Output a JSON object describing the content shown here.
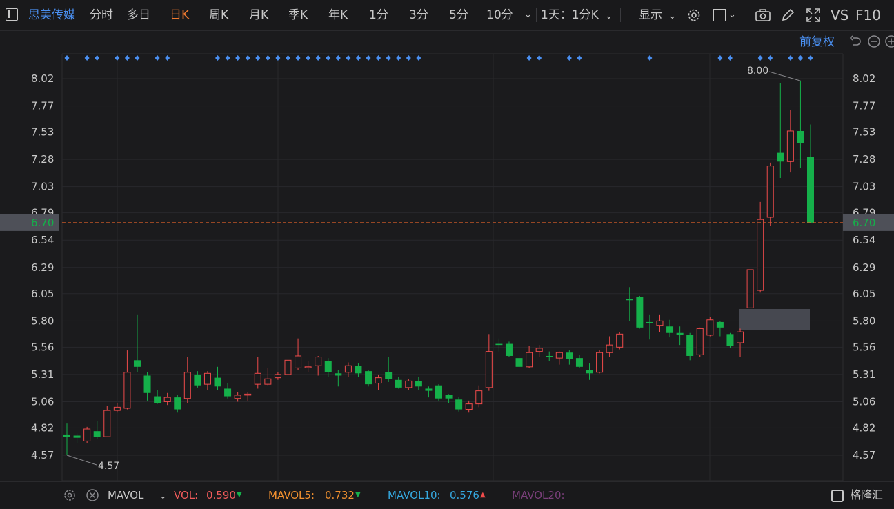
{
  "toolbar": {
    "stock_name": "思美传媒",
    "periods": [
      "分时",
      "多日",
      "日K",
      "周K",
      "月K",
      "季K",
      "年K",
      "1分",
      "3分",
      "5分",
      "10分"
    ],
    "range_select": "1天：1分K",
    "display": "显示",
    "vs": "VS",
    "f10": "F10"
  },
  "adjust_label": "前复权",
  "accent_up": "#ef4b4b",
  "accent_down": "#15b04a",
  "chart_data": {
    "type": "candlestick",
    "y_ticks": [
      "8.02",
      "7.77",
      "7.53",
      "7.28",
      "7.03",
      "6.79",
      "6.54",
      "6.29",
      "6.05",
      "5.80",
      "5.56",
      "5.31",
      "5.06",
      "4.82",
      "4.57"
    ],
    "ylim": [
      4.44,
      8.23
    ],
    "current_price": "6.70",
    "high_label": "8.00",
    "low_label": "4.57",
    "candles": [
      {
        "o": 4.76,
        "c": 4.74,
        "h": 4.86,
        "l": 4.57
      },
      {
        "o": 4.75,
        "c": 4.73,
        "h": 4.77,
        "l": 4.68
      },
      {
        "o": 4.7,
        "c": 4.81,
        "h": 4.83,
        "l": 4.68
      },
      {
        "o": 4.79,
        "c": 4.74,
        "h": 4.88,
        "l": 4.72
      },
      {
        "o": 4.74,
        "c": 4.98,
        "h": 5.02,
        "l": 4.74
      },
      {
        "o": 4.98,
        "c": 5.01,
        "h": 5.05,
        "l": 4.96
      },
      {
        "o": 5.0,
        "c": 5.33,
        "h": 5.53,
        "l": 4.99
      },
      {
        "o": 5.44,
        "c": 5.38,
        "h": 5.86,
        "l": 5.33
      },
      {
        "o": 5.3,
        "c": 5.14,
        "h": 5.33,
        "l": 5.07
      },
      {
        "o": 5.11,
        "c": 5.05,
        "h": 5.17,
        "l": 5.04
      },
      {
        "o": 5.06,
        "c": 5.1,
        "h": 5.14,
        "l": 5.03
      },
      {
        "o": 5.1,
        "c": 4.99,
        "h": 5.12,
        "l": 4.96
      },
      {
        "o": 5.09,
        "c": 5.33,
        "h": 5.47,
        "l": 5.05
      },
      {
        "o": 5.31,
        "c": 5.21,
        "h": 5.34,
        "l": 5.19
      },
      {
        "o": 5.22,
        "c": 5.32,
        "h": 5.34,
        "l": 5.17
      },
      {
        "o": 5.28,
        "c": 5.2,
        "h": 5.38,
        "l": 5.17
      },
      {
        "o": 5.18,
        "c": 5.11,
        "h": 5.23,
        "l": 5.09
      },
      {
        "o": 5.09,
        "c": 5.12,
        "h": 5.15,
        "l": 5.06
      },
      {
        "o": 5.13,
        "c": 5.13,
        "h": 5.15,
        "l": 5.07
      },
      {
        "o": 5.22,
        "c": 5.32,
        "h": 5.47,
        "l": 5.18
      },
      {
        "o": 5.22,
        "c": 5.27,
        "h": 5.37,
        "l": 5.21
      },
      {
        "o": 5.28,
        "c": 5.31,
        "h": 5.33,
        "l": 5.26
      },
      {
        "o": 5.31,
        "c": 5.44,
        "h": 5.48,
        "l": 5.3
      },
      {
        "o": 5.37,
        "c": 5.48,
        "h": 5.64,
        "l": 5.35
      },
      {
        "o": 5.38,
        "c": 5.38,
        "h": 5.43,
        "l": 5.33
      },
      {
        "o": 5.39,
        "c": 5.47,
        "h": 5.48,
        "l": 5.3
      },
      {
        "o": 5.43,
        "c": 5.33,
        "h": 5.46,
        "l": 5.29
      },
      {
        "o": 5.32,
        "c": 5.3,
        "h": 5.35,
        "l": 5.2
      },
      {
        "o": 5.33,
        "c": 5.39,
        "h": 5.42,
        "l": 5.29
      },
      {
        "o": 5.39,
        "c": 5.32,
        "h": 5.41,
        "l": 5.29
      },
      {
        "o": 5.34,
        "c": 5.22,
        "h": 5.35,
        "l": 5.2
      },
      {
        "o": 5.23,
        "c": 5.28,
        "h": 5.31,
        "l": 5.17
      },
      {
        "o": 5.33,
        "c": 5.27,
        "h": 5.47,
        "l": 5.24
      },
      {
        "o": 5.26,
        "c": 5.19,
        "h": 5.29,
        "l": 5.18
      },
      {
        "o": 5.19,
        "c": 5.25,
        "h": 5.27,
        "l": 5.17
      },
      {
        "o": 5.25,
        "c": 5.2,
        "h": 5.29,
        "l": 5.17
      },
      {
        "o": 5.18,
        "c": 5.16,
        "h": 5.2,
        "l": 5.1
      },
      {
        "o": 5.21,
        "c": 5.09,
        "h": 5.22,
        "l": 5.07
      },
      {
        "o": 5.12,
        "c": 5.09,
        "h": 5.13,
        "l": 5.05
      },
      {
        "o": 5.08,
        "c": 4.99,
        "h": 5.1,
        "l": 4.97
      },
      {
        "o": 4.99,
        "c": 5.04,
        "h": 5.07,
        "l": 4.96
      },
      {
        "o": 5.04,
        "c": 5.16,
        "h": 5.21,
        "l": 5.01
      },
      {
        "o": 5.19,
        "c": 5.52,
        "h": 5.68,
        "l": 5.16
      },
      {
        "o": 5.59,
        "c": 5.58,
        "h": 5.64,
        "l": 5.52
      },
      {
        "o": 5.59,
        "c": 5.48,
        "h": 5.61,
        "l": 5.47
      },
      {
        "o": 5.46,
        "c": 5.38,
        "h": 5.48,
        "l": 5.37
      },
      {
        "o": 5.38,
        "c": 5.51,
        "h": 5.57,
        "l": 5.37
      },
      {
        "o": 5.52,
        "c": 5.55,
        "h": 5.58,
        "l": 5.47
      },
      {
        "o": 5.48,
        "c": 5.47,
        "h": 5.52,
        "l": 5.43
      },
      {
        "o": 5.46,
        "c": 5.51,
        "h": 5.52,
        "l": 5.4
      },
      {
        "o": 5.51,
        "c": 5.45,
        "h": 5.53,
        "l": 5.4
      },
      {
        "o": 5.46,
        "c": 5.38,
        "h": 5.49,
        "l": 5.37
      },
      {
        "o": 5.35,
        "c": 5.32,
        "h": 5.41,
        "l": 5.26
      },
      {
        "o": 5.33,
        "c": 5.51,
        "h": 5.53,
        "l": 5.32
      },
      {
        "o": 5.51,
        "c": 5.58,
        "h": 5.66,
        "l": 5.47
      },
      {
        "o": 5.56,
        "c": 5.68,
        "h": 5.7,
        "l": 5.54
      },
      {
        "o": 6.0,
        "c": 5.99,
        "h": 6.11,
        "l": 5.8
      },
      {
        "o": 6.02,
        "c": 5.74,
        "h": 6.03,
        "l": 5.73
      },
      {
        "o": 5.79,
        "c": 5.78,
        "h": 5.86,
        "l": 5.63
      },
      {
        "o": 5.76,
        "c": 5.8,
        "h": 5.86,
        "l": 5.7
      },
      {
        "o": 5.75,
        "c": 5.69,
        "h": 5.81,
        "l": 5.65
      },
      {
        "o": 5.69,
        "c": 5.67,
        "h": 5.75,
        "l": 5.58
      },
      {
        "o": 5.67,
        "c": 5.48,
        "h": 5.69,
        "l": 5.44
      },
      {
        "o": 5.49,
        "c": 5.73,
        "h": 5.74,
        "l": 5.47
      },
      {
        "o": 5.67,
        "c": 5.81,
        "h": 5.84,
        "l": 5.66
      },
      {
        "o": 5.79,
        "c": 5.74,
        "h": 5.8,
        "l": 5.66
      },
      {
        "o": 5.68,
        "c": 5.57,
        "h": 5.69,
        "l": 5.55
      },
      {
        "o": 5.6,
        "c": 5.7,
        "h": 5.73,
        "l": 5.47
      },
      {
        "o": 5.92,
        "c": 6.27,
        "h": 6.27,
        "l": 5.92
      },
      {
        "o": 6.08,
        "c": 6.73,
        "h": 6.89,
        "l": 6.06
      },
      {
        "o": 6.75,
        "c": 7.22,
        "h": 7.25,
        "l": 6.67
      },
      {
        "o": 7.34,
        "c": 7.26,
        "h": 7.98,
        "l": 7.11
      },
      {
        "o": 7.26,
        "c": 7.54,
        "h": 7.73,
        "l": 7.16
      },
      {
        "o": 7.54,
        "c": 7.43,
        "h": 8.0,
        "l": 7.2
      },
      {
        "o": 7.3,
        "c": 6.7,
        "h": 7.6,
        "l": 6.7
      }
    ]
  },
  "indicators": {
    "name": "MAVOL",
    "vol_label": "VOL:",
    "vol_value": "0.590",
    "ma5_label": "MAVOL5:",
    "ma5_value": "0.732",
    "ma10_label": "MAVOL10:",
    "ma10_value": "0.576",
    "ma20_label": "MAVOL20:"
  },
  "brand": "格隆汇"
}
